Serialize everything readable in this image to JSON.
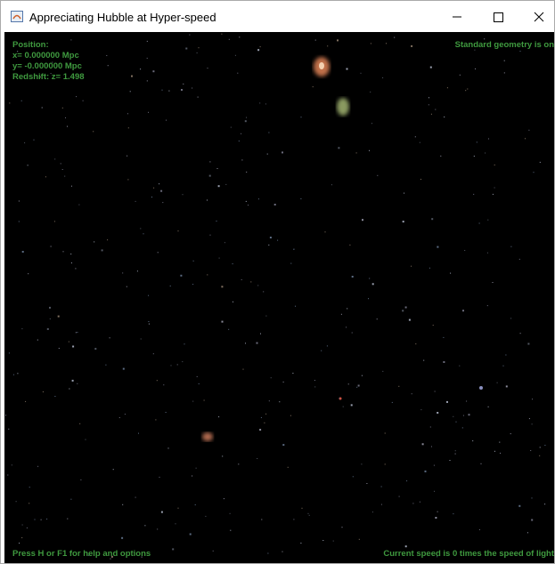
{
  "window": {
    "title": "Appreciating Hubble at Hyper-speed"
  },
  "hud": {
    "position_label": "Position:",
    "x": "x= 0.000000 Mpc",
    "y": "y= -0.000000 Mpc",
    "redshift": "Redshift: z= 1.498",
    "geometry": "Standard geometry is on",
    "help": "Press H or F1 for help and options",
    "speed": "Current speed is 0 times the speed of light"
  }
}
